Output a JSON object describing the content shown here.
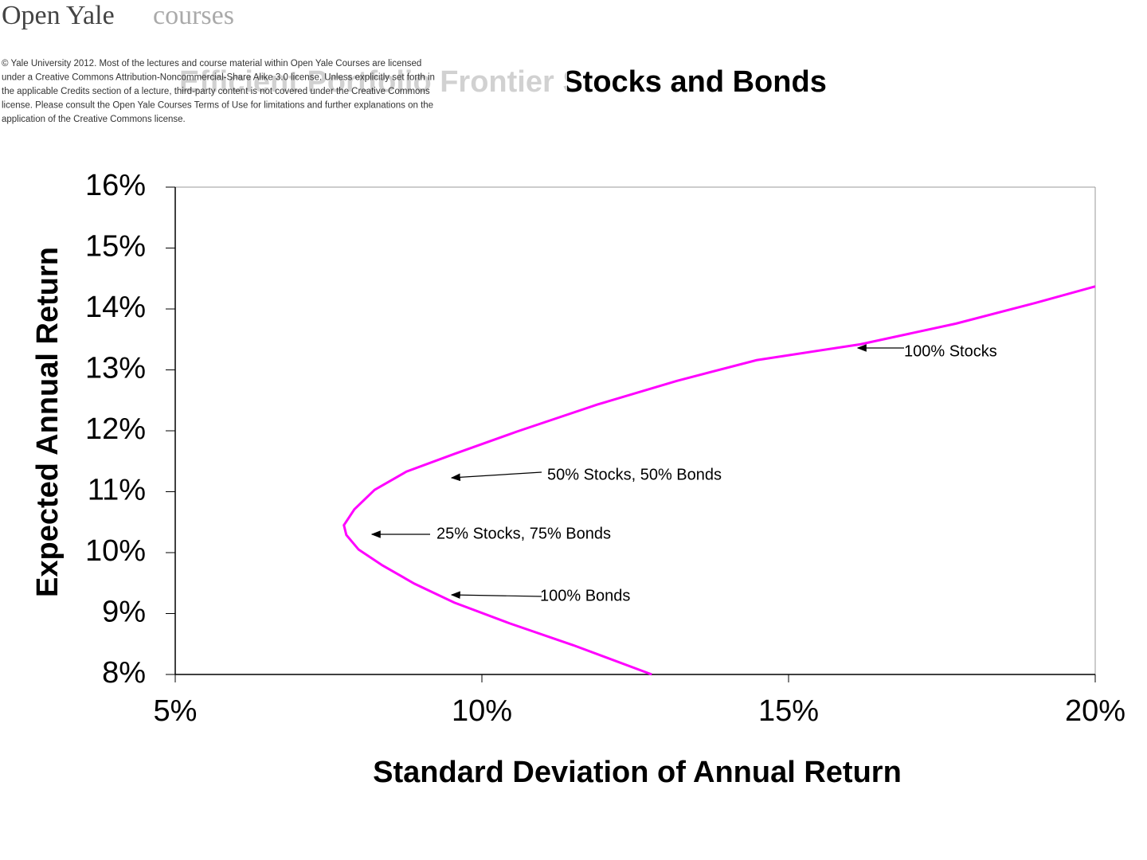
{
  "header": {
    "brand": "Open Yale",
    "brand_suffix": "courses",
    "license_lines": [
      "© Yale University 2012. Most of the lectures and course material within Open Yale Courses are licensed",
      "under a Creative Commons Attribution-Noncommercial-Share Alike 3.0 license. Unless explicitly set forth in",
      "the applicable Credits section of a lecture, third-party content is not covered under the Creative Commons",
      "license. Please consult the Open Yale Courses Terms of Use for limitations and further explanations on the",
      "application of the Creative Commons license."
    ]
  },
  "chart_data": {
    "type": "line",
    "title": "Efficient Portfolio Frontier Stocks and Bonds",
    "x_label": "Standard Deviation of Annual Return",
    "y_label": "Expected Annual Return",
    "color": "#ff00ff",
    "x": [
      12.77,
      11.49,
      10.45,
      9.55,
      8.9,
      8.38,
      7.99,
      7.79,
      7.75,
      7.92,
      8.25,
      8.77,
      9.55,
      10.58,
      11.88,
      13.18,
      14.48,
      16.17,
      17.73,
      19.03,
      20.0
    ],
    "values": [
      8.0,
      8.48,
      8.84,
      9.18,
      9.49,
      9.79,
      10.05,
      10.29,
      10.45,
      10.71,
      11.03,
      11.33,
      11.62,
      11.99,
      12.43,
      12.82,
      13.16,
      13.42,
      13.76,
      14.1,
      14.37
    ],
    "xlim": [
      5,
      20
    ],
    "ylim": [
      8,
      16
    ],
    "xticks": [
      {
        "value": 5,
        "label": "5%"
      },
      {
        "value": 10,
        "label": "10%"
      },
      {
        "value": 15,
        "label": "15%"
      },
      {
        "value": 20,
        "label": "20%"
      }
    ],
    "yticks": [
      {
        "value": 8,
        "label": "8%"
      },
      {
        "value": 9,
        "label": "9%"
      },
      {
        "value": 10,
        "label": "10%"
      },
      {
        "value": 11,
        "label": "11%"
      },
      {
        "value": 12,
        "label": "12%"
      },
      {
        "value": 13,
        "label": "13%"
      },
      {
        "value": 14,
        "label": "14%"
      },
      {
        "value": 15,
        "label": "15%"
      },
      {
        "value": 16,
        "label": "16%"
      }
    ],
    "annotations": [
      "100% Stocks",
      "50% Stocks, 50% Bonds",
      "25% Stocks, 75% Bonds",
      "100% Bonds"
    ]
  }
}
